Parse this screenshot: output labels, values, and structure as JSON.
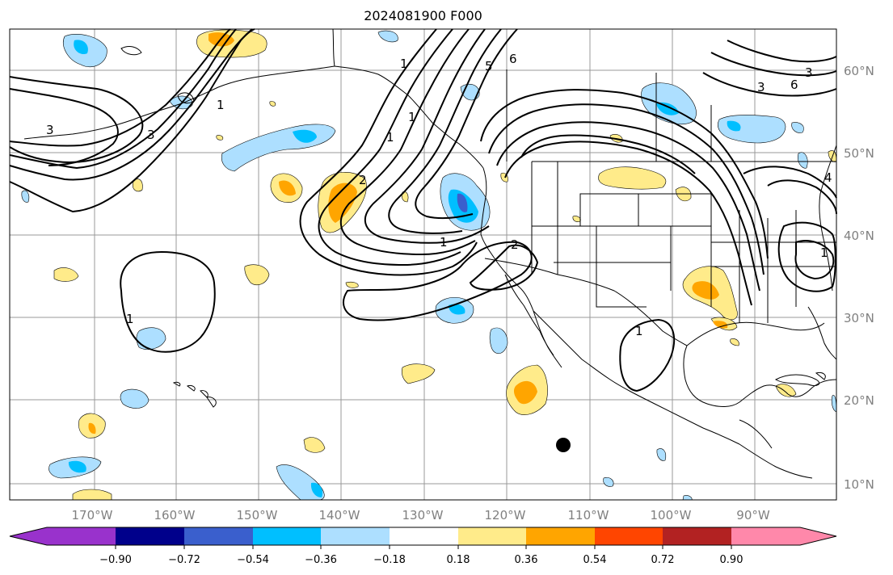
{
  "title": "2024081900 F000",
  "map": {
    "projection": "plate-carree",
    "lon_range": [
      -178,
      -78
    ],
    "lat_range": [
      8,
      65
    ],
    "lat_ticks": [
      "60°N",
      "50°N",
      "40°N",
      "30°N",
      "20°N",
      "10°N"
    ],
    "lon_ticks": [
      "170°W",
      "160°W",
      "150°W",
      "140°W",
      "130°W",
      "120°W",
      "110°W",
      "100°W",
      "90°W"
    ],
    "contour_labels": [
      "3",
      "3",
      "1",
      "1",
      "3",
      "6",
      "3",
      "6",
      "1",
      "1",
      "2",
      "1",
      "1",
      "4",
      "1",
      "2",
      "5",
      "1"
    ],
    "marker": {
      "name": "black-dot",
      "lon": -113.0,
      "lat": 14.5
    }
  },
  "colorbar": {
    "tick_labels": [
      "−0.90",
      "−0.72",
      "−0.54",
      "−0.36",
      "−0.18",
      "0.18",
      "0.36",
      "0.54",
      "0.72",
      "0.90"
    ],
    "colors": [
      "#9932CC",
      "#00008B",
      "#3A5FCD",
      "#00BFFF",
      "#ADDFFF",
      "#FFFFFF",
      "#FFEB8A",
      "#FFA500",
      "#FF4500",
      "#B22222",
      "#FF88AA"
    ]
  }
}
